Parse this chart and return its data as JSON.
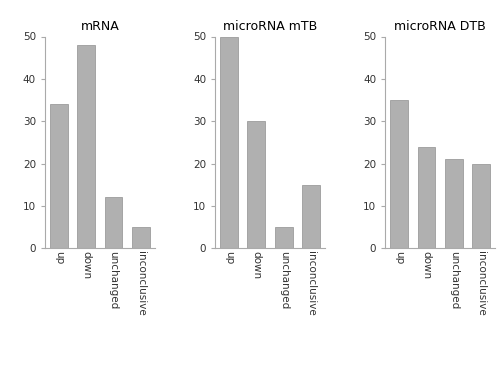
{
  "panels": [
    {
      "title": "mRNA",
      "categories": [
        "up",
        "down",
        "unchanged",
        "inconclusive"
      ],
      "values": [
        34,
        48,
        12,
        5
      ]
    },
    {
      "title": "microRNA mTB",
      "categories": [
        "up",
        "down",
        "unchanged",
        "inconclusive"
      ],
      "values": [
        50,
        30,
        5,
        15
      ]
    },
    {
      "title": "microRNA DTB",
      "categories": [
        "up",
        "down",
        "unchanged",
        "inconclusive"
      ],
      "values": [
        35,
        24,
        21,
        20
      ]
    }
  ],
  "bar_color": "#b0b0b0",
  "bar_edge_color": "#909090",
  "ylim": [
    0,
    50
  ],
  "yticks": [
    0,
    10,
    20,
    30,
    40,
    50
  ],
  "background_color": "#ffffff",
  "title_fontsize": 9,
  "tick_fontsize": 7.5,
  "bar_width": 0.65
}
